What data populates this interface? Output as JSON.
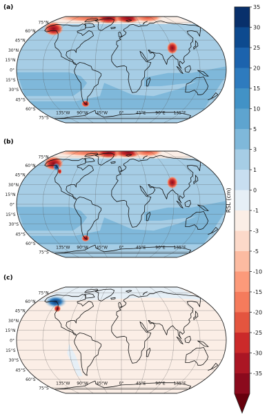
{
  "panels": [
    {
      "label": "(a)",
      "scenario": "a"
    },
    {
      "label": "(b)",
      "scenario": "b"
    },
    {
      "label": "(c)",
      "scenario": "c"
    }
  ],
  "lat_labels": [
    "75°N",
    "60°N",
    "45°N",
    "30°N",
    "15°N",
    "0°",
    "15°S",
    "30°S",
    "45°S",
    "60°S",
    "75°S"
  ],
  "lon_labels": [
    "135°W",
    "90°W",
    "45°W",
    "0°",
    "45°E",
    "90°E",
    "135°E"
  ],
  "colorbar": {
    "label": "RSL (cm)",
    "ticks": [
      "35",
      "30",
      "25",
      "20",
      "15",
      "10",
      "5",
      "3",
      "1",
      "0",
      "-1",
      "-3",
      "-5",
      "-10",
      "-15",
      "-20",
      "-25",
      "-30",
      "-35"
    ],
    "extend": "min",
    "colors": [
      "#08306b",
      "#0d4a8f",
      "#1c63ad",
      "#2e7bbe",
      "#4292c6",
      "#5ea4cf",
      "#7fb8da",
      "#a6cde5",
      "#c8def0",
      "#e6eff6",
      "#fbeee6",
      "#fcd9c9",
      "#fcbba1",
      "#fc9a7a",
      "#f57b5c",
      "#e4553f",
      "#cb2a2a",
      "#ab1624",
      "#8b0a1d",
      "#67000d"
    ]
  },
  "colors": {
    "ocean_a": "#a6cde5",
    "ocean_b_dark": "#7fb8da",
    "ocean_c": "#fbeee6",
    "ocean_c_blue": "#e6eff6",
    "coast": "#111111",
    "grid": "#555555"
  },
  "chart_data": {
    "type": "heatmap",
    "projection": "Robinson (global map, three panels)",
    "variable": "RSL (cm)",
    "color_range": [
      -35,
      35
    ],
    "panels": [
      "(a)",
      "(b)",
      "(c)"
    ]
  }
}
